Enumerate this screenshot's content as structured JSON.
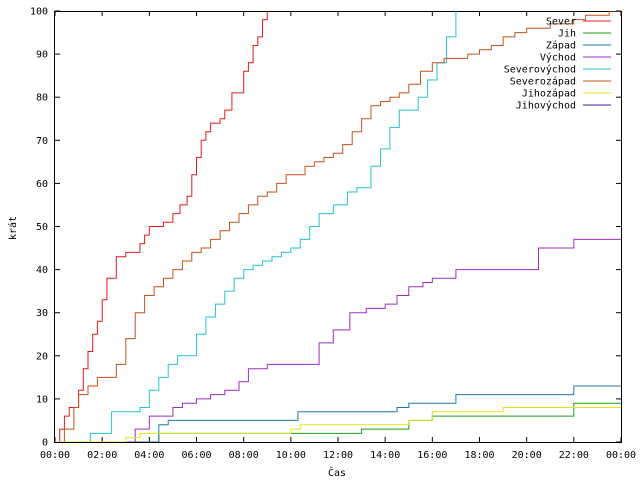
{
  "chart_data": {
    "type": "line",
    "title": "",
    "xlabel": "Čas",
    "ylabel": "krát",
    "xlim": [
      0,
      24
    ],
    "ylim": [
      0,
      100
    ],
    "x_ticks": [
      "00:00",
      "02:00",
      "04:00",
      "06:00",
      "08:00",
      "10:00",
      "12:00",
      "14:00",
      "16:00",
      "18:00",
      "20:00",
      "22:00",
      "00:00"
    ],
    "y_ticks": [
      "0",
      "10",
      "20",
      "30",
      "40",
      "50",
      "60",
      "70",
      "80",
      "90",
      "100"
    ],
    "grid": false,
    "legend_position": "top-right",
    "series": [
      {
        "name": "Sever",
        "color": "#e41a1c",
        "x": [
          0,
          0.2,
          0.4,
          0.6,
          0.8,
          1.0,
          1.2,
          1.4,
          1.6,
          1.8,
          2.0,
          2.2,
          2.6,
          3.0,
          3.2,
          3.4,
          3.6,
          3.8,
          4.0,
          4.2,
          4.4,
          4.6,
          5.0,
          5.3,
          5.6,
          5.8,
          6.0,
          6.2,
          6.4,
          6.6,
          6.8,
          7.0,
          7.2,
          7.5,
          7.8,
          8.0,
          8.2,
          8.4,
          8.6,
          8.8,
          9.0
        ],
        "y": [
          0,
          3,
          6,
          8,
          8,
          12,
          17,
          21,
          25,
          28,
          33,
          38,
          43,
          44,
          44,
          44,
          46,
          48,
          50,
          50,
          50,
          51,
          53,
          55,
          57,
          62,
          66,
          70,
          72,
          74,
          74,
          75,
          77,
          81,
          81,
          86,
          88,
          92,
          94,
          98,
          100
        ]
      },
      {
        "name": "Jih",
        "color": "#1a9e1a",
        "x": [
          0,
          4.3,
          4.4,
          10.0,
          11.0,
          12.6,
          13.0,
          14.5,
          15.0,
          16.0,
          17.0,
          21.5,
          22.0,
          24.0
        ],
        "y": [
          0,
          0,
          2,
          2,
          2,
          2,
          3,
          3,
          5,
          6,
          6,
          6,
          9,
          9
        ]
      },
      {
        "name": "Západ",
        "color": "#1f77b4",
        "x": [
          0,
          4.2,
          4.4,
          4.8,
          8.0,
          10.3,
          12.0,
          14.5,
          15.0,
          16.5,
          17.0,
          21.0,
          22.0,
          24.0
        ],
        "y": [
          0,
          0,
          4,
          5,
          5,
          7,
          7,
          8,
          9,
          9,
          11,
          11,
          13,
          13
        ]
      },
      {
        "name": "Východ",
        "color": "#9d2fbf",
        "x": [
          0,
          3.2,
          3.4,
          4.0,
          4.4,
          5.0,
          5.4,
          6.0,
          6.6,
          7.2,
          7.8,
          8.2,
          9.0,
          10.0,
          10.7,
          11.2,
          11.8,
          12.5,
          13.2,
          14.0,
          14.5,
          15.0,
          15.6,
          16.0,
          17.0,
          18.0,
          20.0,
          20.5,
          21.0,
          22.0,
          24.0
        ],
        "y": [
          0,
          0,
          3,
          6,
          6,
          8,
          9,
          10,
          11,
          12,
          14,
          17,
          18,
          18,
          18,
          23,
          26,
          30,
          31,
          32,
          34,
          36,
          37,
          38,
          40,
          40,
          40,
          45,
          45,
          47,
          47
        ]
      },
      {
        "name": "Severovýchod",
        "color": "#22c4d3",
        "x": [
          0,
          1.3,
          1.5,
          2.0,
          2.4,
          2.8,
          3.2,
          3.6,
          4.0,
          4.4,
          4.8,
          5.2,
          5.6,
          6.0,
          6.4,
          6.8,
          7.2,
          7.6,
          8.0,
          8.4,
          8.8,
          9.2,
          9.6,
          10.0,
          10.4,
          10.8,
          11.2,
          11.8,
          12.4,
          12.8,
          13.0,
          13.4,
          13.8,
          14.2,
          14.6,
          15.0,
          15.4,
          15.8,
          16.2,
          16.6,
          17.0
        ],
        "y": [
          0,
          0,
          2,
          2,
          7,
          7,
          7,
          8,
          12,
          15,
          18,
          20,
          20,
          25,
          29,
          32,
          35,
          38,
          40,
          41,
          42,
          43,
          44,
          45,
          47,
          50,
          53,
          55,
          58,
          59,
          59,
          64,
          68,
          73,
          77,
          77,
          80,
          84,
          88,
          94,
          100
        ]
      },
      {
        "name": "Severozápad",
        "color": "#c4541a",
        "x": [
          0,
          0.4,
          0.8,
          1.0,
          1.4,
          1.8,
          2.2,
          2.6,
          3.0,
          3.4,
          3.8,
          4.2,
          4.6,
          5.0,
          5.4,
          5.8,
          6.2,
          6.6,
          7.0,
          7.4,
          7.8,
          8.2,
          8.6,
          9.0,
          9.4,
          9.8,
          10.2,
          10.6,
          11.0,
          11.4,
          11.8,
          12.2,
          12.6,
          13.0,
          13.4,
          13.8,
          14.2,
          14.6,
          15.0,
          15.5,
          16.0,
          16.5,
          17.0,
          17.5,
          18.0,
          18.5,
          19.0,
          19.5,
          20.0,
          20.5,
          21.0,
          21.5,
          22.0,
          22.5,
          23.0,
          23.5,
          24.0
        ],
        "y": [
          0,
          3,
          8,
          11,
          13,
          15,
          15,
          18,
          24,
          30,
          34,
          36,
          38,
          40,
          42,
          44,
          45,
          47,
          49,
          51,
          53,
          55,
          57,
          58,
          60,
          62,
          62,
          64,
          65,
          66,
          67,
          69,
          72,
          75,
          78,
          79,
          80,
          81,
          83,
          86,
          88,
          89,
          89,
          90,
          91,
          92,
          94,
          95,
          96,
          96,
          97,
          97,
          98,
          99,
          99,
          100,
          100
        ]
      },
      {
        "name": "Jihozápad",
        "color": "#e8e31a",
        "x": [
          0,
          2.8,
          3.0,
          3.6,
          4.0,
          8.0,
          9.0,
          10.0,
          10.4,
          11.0,
          12.0,
          13.0,
          14.0,
          15.0,
          16.0,
          17.0,
          18.0,
          19.0,
          20.0,
          21.0,
          22.0,
          23.0,
          24.0
        ],
        "y": [
          0,
          0,
          1,
          2,
          2,
          2,
          2,
          3,
          4,
          4,
          4,
          4,
          4,
          5,
          7,
          7,
          7,
          8,
          8,
          8,
          8,
          8,
          8
        ]
      },
      {
        "name": "Jihovýchod",
        "color": "#4a1a9e",
        "x": [],
        "y": []
      }
    ]
  }
}
